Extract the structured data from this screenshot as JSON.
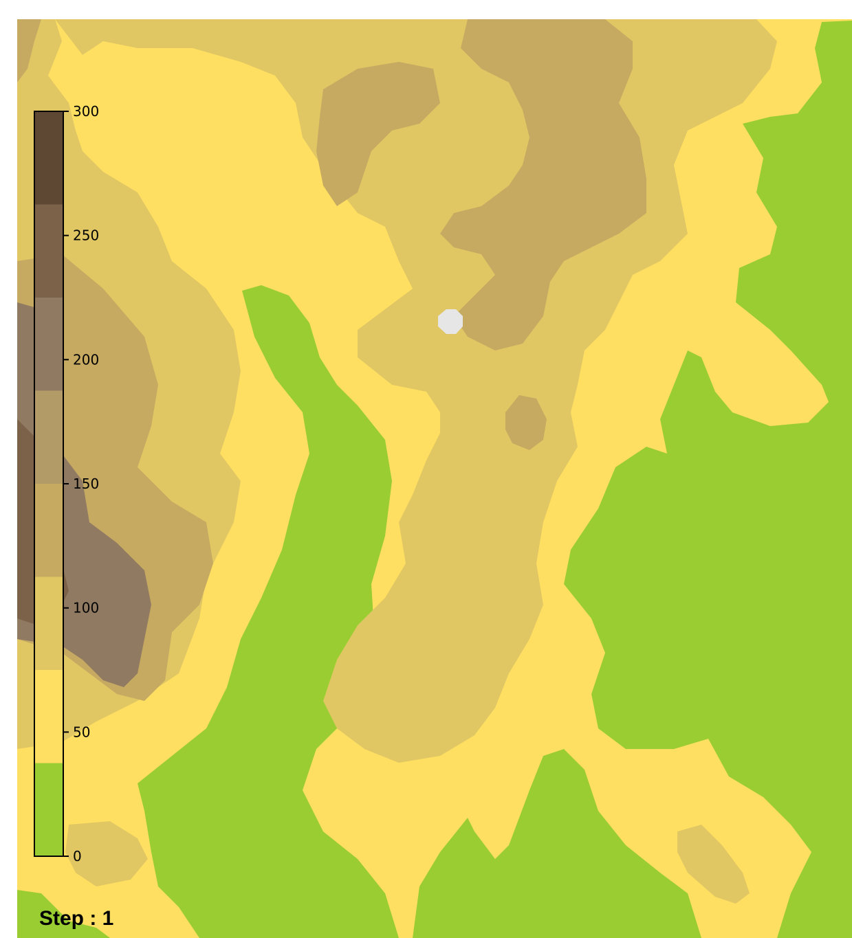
{
  "terrain_colors": {
    "lowland": "#9ACD32",
    "band_50": "#FFDF62",
    "band_100": "#E0C763",
    "band_150": "#C6AA62",
    "band_200": "#917A62",
    "band_250": "#7B6248",
    "band_300": "#5E4833",
    "marker": "#E6E6E6"
  },
  "legend": {
    "min": 0,
    "max": 300,
    "ticks": [
      {
        "value": 0,
        "label": "0"
      },
      {
        "value": 50,
        "label": "50"
      },
      {
        "value": 100,
        "label": "100"
      },
      {
        "value": 150,
        "label": "150"
      },
      {
        "value": 200,
        "label": "200"
      },
      {
        "value": 250,
        "label": "250"
      },
      {
        "value": 300,
        "label": "300"
      }
    ],
    "bands": [
      {
        "from": 0,
        "to": 37.5,
        "color": "#9ACD32"
      },
      {
        "from": 37.5,
        "to": 75,
        "color": "#FFDF62"
      },
      {
        "from": 75,
        "to": 112.5,
        "color": "#E0C763"
      },
      {
        "from": 112.5,
        "to": 150,
        "color": "#C6AA62"
      },
      {
        "from": 150,
        "to": 187.5,
        "color": "#B39B67"
      },
      {
        "from": 187.5,
        "to": 225,
        "color": "#917A62"
      },
      {
        "from": 225,
        "to": 262.5,
        "color": "#7B6248"
      },
      {
        "from": 262.5,
        "to": 300,
        "color": "#5E4833"
      }
    ]
  },
  "status": {
    "step_label": "Step : 1"
  }
}
